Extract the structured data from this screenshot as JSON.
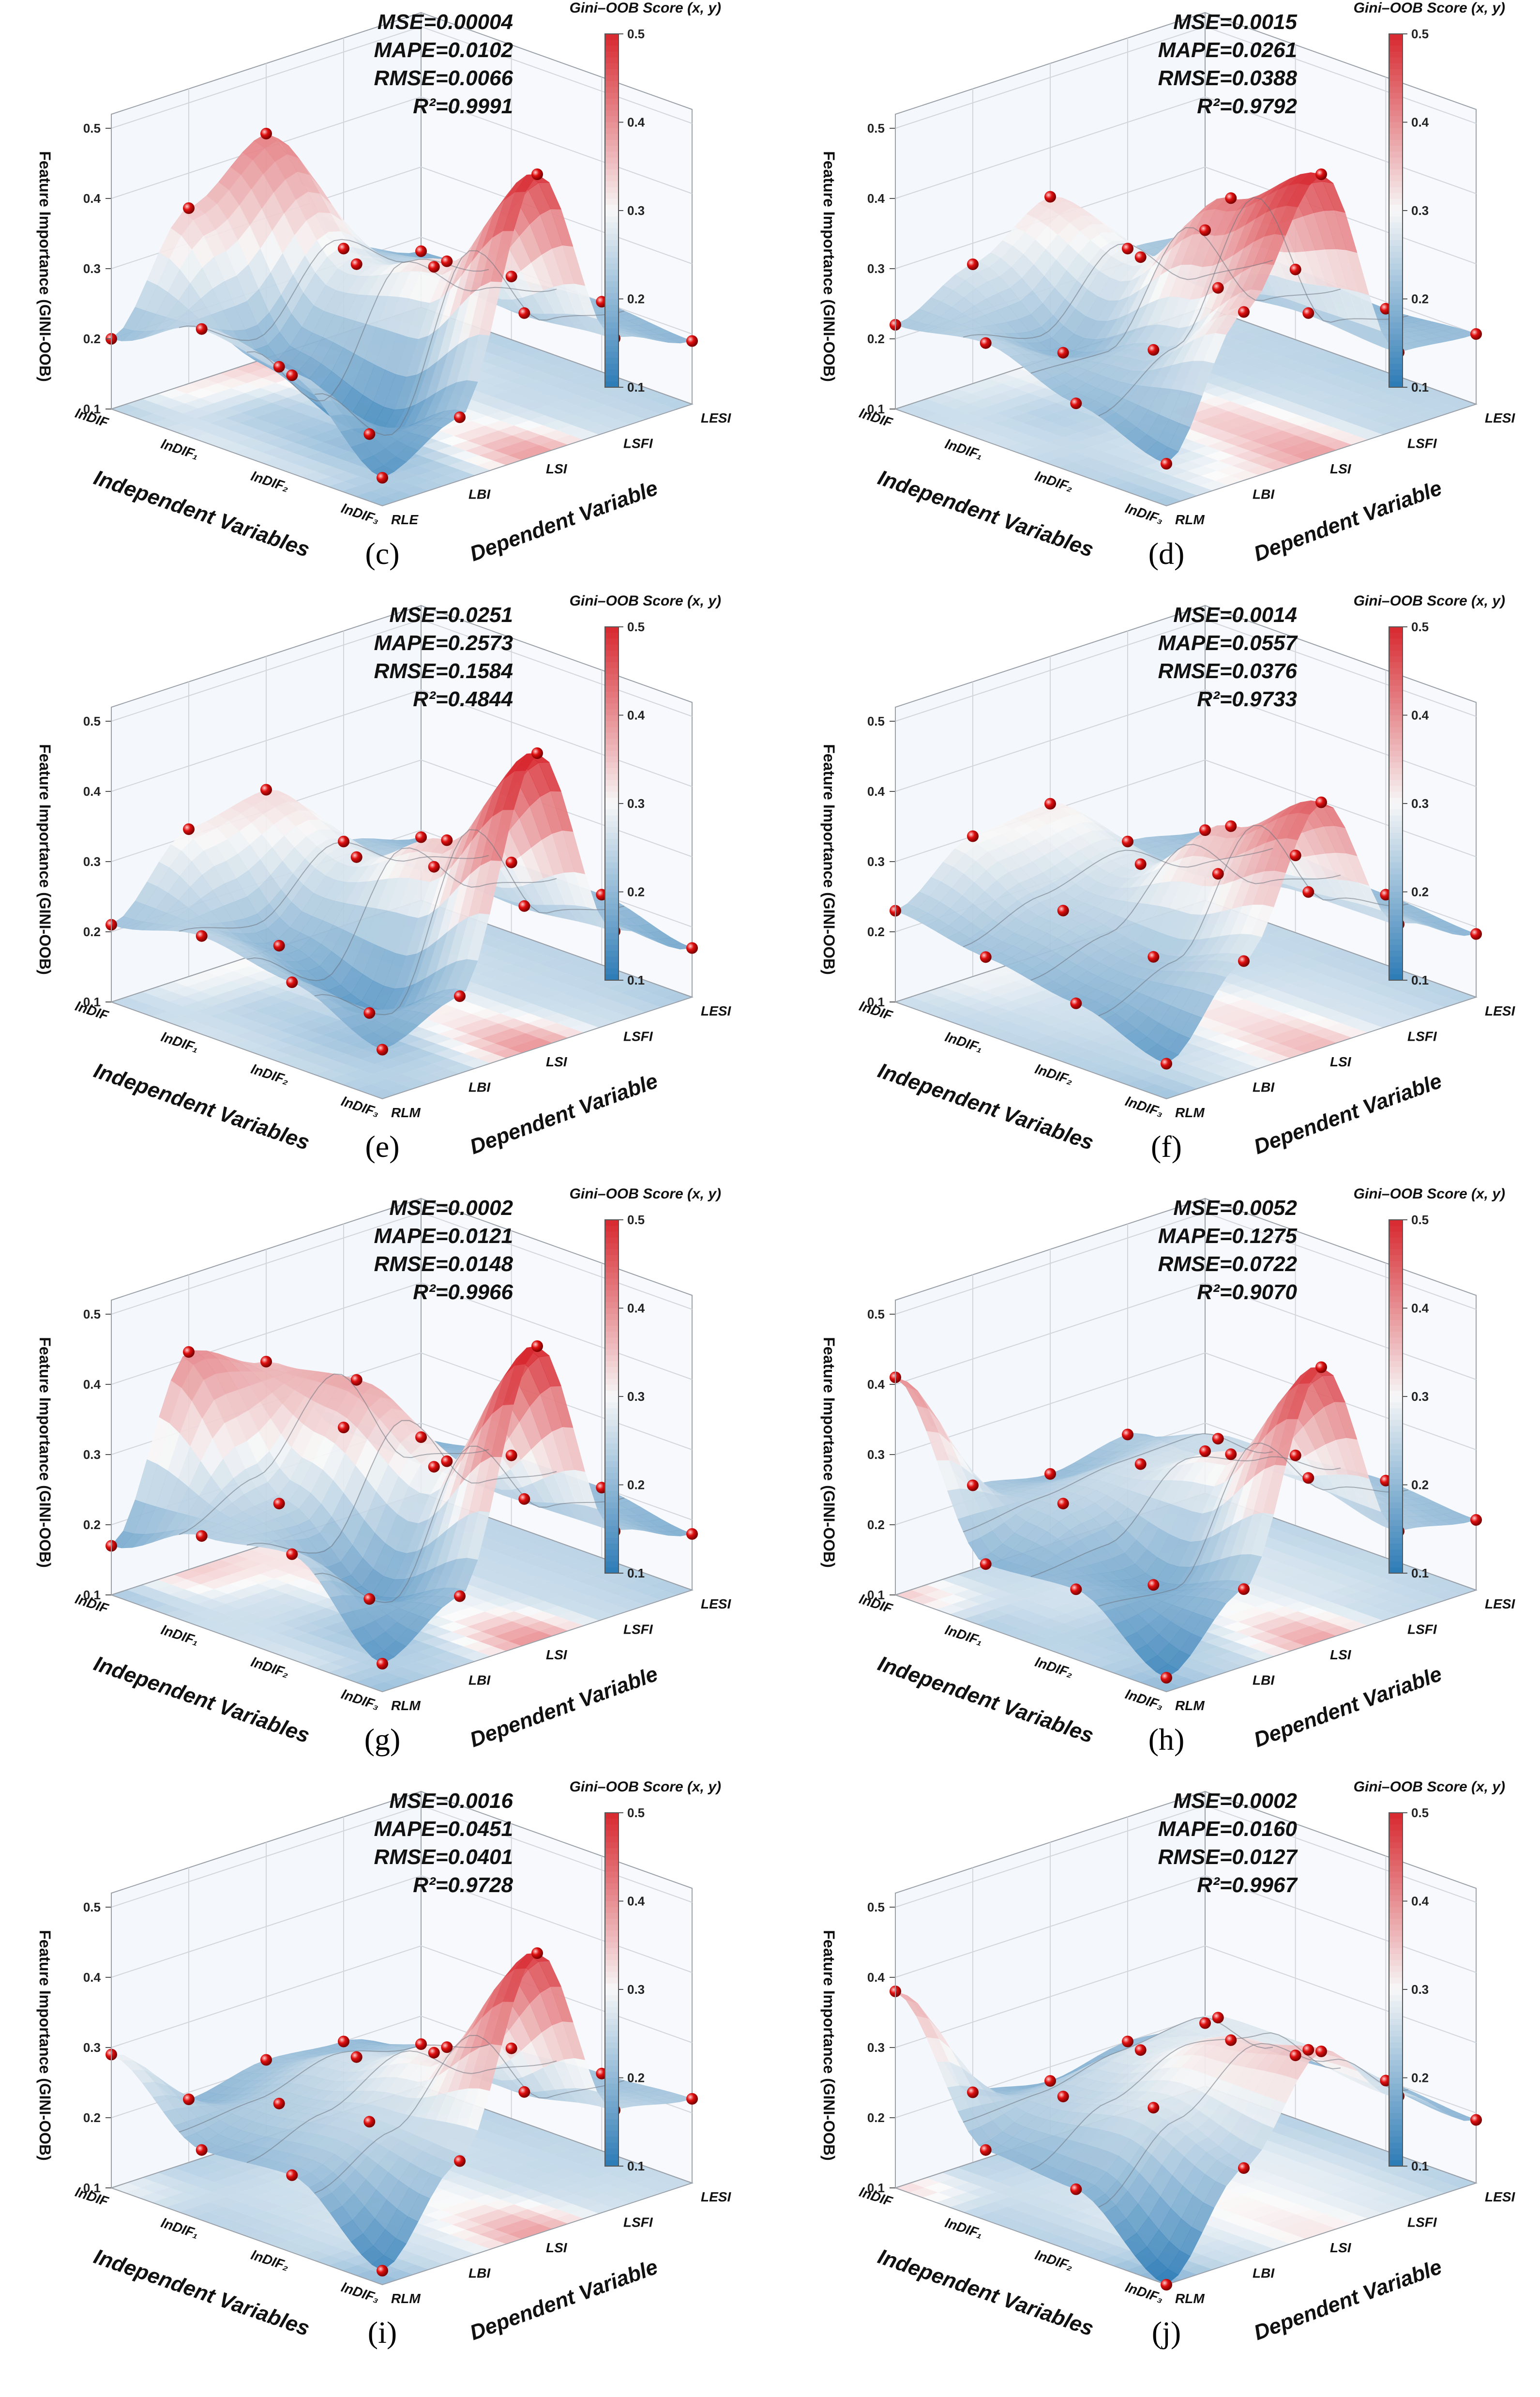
{
  "figure": {
    "z_axis_label": "Feature Importance (GINI-OOB)",
    "colorbar_title": "Gini–OOB Score (x, y)",
    "colorbar_ticks": [
      "0.5",
      "0.4",
      "0.3",
      "0.2",
      "0.1"
    ],
    "z_ticks": [
      "0.5",
      "0.4",
      "0.3",
      "0.2",
      "0.1"
    ],
    "x_axis_title": "Independent Variables",
    "y_axis_title": "Dependent Variable",
    "colors": {
      "high": "#d7282f",
      "mid": "#f7f7f7",
      "low": "#2c7bb6",
      "marker": "#e01010"
    }
  },
  "chart_data": [
    {
      "type": "surface",
      "caption": "(c)",
      "x_categories": [
        "lnDIF",
        "lnDIF₁",
        "lnDIF₂",
        "lnDIF₃"
      ],
      "y_categories": [
        "RLE",
        "LBI",
        "LSI",
        "LSFI",
        "LESI"
      ],
      "zlim": [
        0.1,
        0.5
      ],
      "metrics": {
        "mse": "MSE=0.00004",
        "mape": "MAPE=0.0102",
        "rmse": "RMSE=0.0066",
        "r2": "R²=0.9991"
      },
      "z": [
        [
          0.2,
          0.35,
          0.42,
          0.22,
          0.18
        ],
        [
          0.26,
          0.17,
          0.28,
          0.24,
          0.19
        ],
        [
          0.24,
          0.12,
          0.33,
          0.22,
          0.2
        ],
        [
          0.14,
          0.19,
          0.5,
          0.23,
          0.19
        ]
      ]
    },
    {
      "type": "surface",
      "caption": "(d)",
      "x_categories": [
        "lnDIF",
        "lnDIF₁",
        "lnDIF₂",
        "lnDIF₃"
      ],
      "y_categories": [
        "RLM",
        "LBI",
        "LSI",
        "LSFI",
        "LESI"
      ],
      "zlim": [
        0.1,
        0.5
      ],
      "metrics": {
        "mse": "MSE=0.0015",
        "mape": "MAPE=0.0261",
        "rmse": "RMSE=0.0388",
        "r2": "R²=0.9792"
      },
      "z": [
        [
          0.22,
          0.27,
          0.33,
          0.22,
          0.21
        ],
        [
          0.24,
          0.19,
          0.29,
          0.21,
          0.2
        ],
        [
          0.2,
          0.24,
          0.42,
          0.22,
          0.19
        ],
        [
          0.16,
          0.34,
          0.5,
          0.21,
          0.2
        ]
      ]
    },
    {
      "type": "surface",
      "caption": "(e)",
      "x_categories": [
        "lnDIF",
        "lnDIF₁",
        "lnDIF₂",
        "lnDIF₃"
      ],
      "y_categories": [
        "RLM",
        "LBI",
        "LSI",
        "LSFI",
        "LESI"
      ],
      "zlim": [
        0.1,
        0.5
      ],
      "metrics": {
        "mse": "MSE=0.0251",
        "mape": "MAPE=0.2573",
        "rmse": "RMSE=0.1584",
        "r2": "R²=0.4844"
      },
      "z": [
        [
          0.21,
          0.31,
          0.33,
          0.22,
          0.19
        ],
        [
          0.24,
          0.19,
          0.28,
          0.23,
          0.2
        ],
        [
          0.22,
          0.14,
          0.35,
          0.22,
          0.2
        ],
        [
          0.17,
          0.21,
          0.52,
          0.23,
          0.17
        ]
      ]
    },
    {
      "type": "surface",
      "caption": "(f)",
      "x_categories": [
        "lnDIF",
        "lnDIF₁",
        "lnDIF₂",
        "lnDIF₃"
      ],
      "y_categories": [
        "RLM",
        "LBI",
        "LSI",
        "LSFI",
        "LESI"
      ],
      "zlim": [
        0.1,
        0.5
      ],
      "metrics": {
        "mse": "MSE=0.0014",
        "mape": "MAPE=0.0557",
        "rmse": "RMSE=0.0376",
        "r2": "R²=0.9733"
      },
      "z": [
        [
          0.23,
          0.3,
          0.31,
          0.22,
          0.2
        ],
        [
          0.21,
          0.24,
          0.27,
          0.22,
          0.21
        ],
        [
          0.19,
          0.22,
          0.37,
          0.24,
          0.2
        ],
        [
          0.15,
          0.26,
          0.45,
          0.24,
          0.19
        ]
      ]
    },
    {
      "type": "surface",
      "caption": "(g)",
      "x_categories": [
        "lnDIF",
        "lnDIF₁",
        "lnDIF₂",
        "lnDIF₃"
      ],
      "y_categories": [
        "RLM",
        "LBI",
        "LSI",
        "LSFI",
        "LESI"
      ],
      "zlim": [
        0.1,
        0.5
      ],
      "metrics": {
        "mse": "MSE=0.0002",
        "mape": "MAPE=0.0121",
        "rmse": "RMSE=0.0148",
        "r2": "R²=0.9966"
      },
      "z": [
        [
          0.17,
          0.41,
          0.36,
          0.23,
          0.18
        ],
        [
          0.23,
          0.24,
          0.38,
          0.22,
          0.2
        ],
        [
          0.25,
          0.15,
          0.31,
          0.22,
          0.2
        ],
        [
          0.14,
          0.2,
          0.52,
          0.22,
          0.18
        ]
      ]
    },
    {
      "type": "surface",
      "caption": "(h)",
      "x_categories": [
        "lnDIF",
        "lnDIF₁",
        "lnDIF₂",
        "lnDIF₃"
      ],
      "y_categories": [
        "RLM",
        "LBI",
        "LSI",
        "LSFI",
        "LESI"
      ],
      "zlim": [
        0.1,
        0.5
      ],
      "metrics": {
        "mse": "MSE=0.0052",
        "mape": "MAPE=0.1275",
        "rmse": "RMSE=0.0722",
        "r2": "R²=0.9070"
      },
      "z": [
        [
          0.41,
          0.22,
          0.2,
          0.22,
          0.16
        ],
        [
          0.19,
          0.24,
          0.26,
          0.26,
          0.2
        ],
        [
          0.2,
          0.17,
          0.32,
          0.25,
          0.21
        ],
        [
          0.12,
          0.21,
          0.49,
          0.22,
          0.2
        ]
      ]
    },
    {
      "type": "surface",
      "caption": "(i)",
      "x_categories": [
        "lnDIF",
        "lnDIF₁",
        "lnDIF₂",
        "lnDIF₃"
      ],
      "y_categories": [
        "RLM",
        "LBI",
        "LSI",
        "LSFI",
        "LESI"
      ],
      "zlim": [
        0.1,
        0.5
      ],
      "metrics": {
        "mse": "MSE=0.0016",
        "mape": "MAPE=0.0451",
        "rmse": "RMSE=0.0401",
        "r2": "R²=0.9728"
      },
      "z": [
        [
          0.29,
          0.19,
          0.21,
          0.2,
          0.16
        ],
        [
          0.2,
          0.23,
          0.26,
          0.23,
          0.2
        ],
        [
          0.21,
          0.25,
          0.32,
          0.22,
          0.21
        ],
        [
          0.12,
          0.24,
          0.5,
          0.24,
          0.22
        ]
      ]
    },
    {
      "type": "surface",
      "caption": "(j)",
      "x_categories": [
        "lnDIF",
        "lnDIF₁",
        "lnDIF₂",
        "lnDIF₃"
      ],
      "y_categories": [
        "RLM",
        "LBI",
        "LSI",
        "LSFI",
        "LESI"
      ],
      "zlim": [
        0.1,
        0.5
      ],
      "metrics": {
        "mse": "MSE=0.0002",
        "mape": "MAPE=0.0160",
        "rmse": "RMSE=0.0127",
        "r2": "R²=0.9967"
      },
      "z": [
        [
          0.38,
          0.2,
          0.18,
          0.2,
          0.19
        ],
        [
          0.2,
          0.24,
          0.27,
          0.28,
          0.19
        ],
        [
          0.19,
          0.27,
          0.33,
          0.28,
          0.2
        ],
        [
          0.1,
          0.23,
          0.36,
          0.26,
          0.19
        ]
      ]
    }
  ]
}
